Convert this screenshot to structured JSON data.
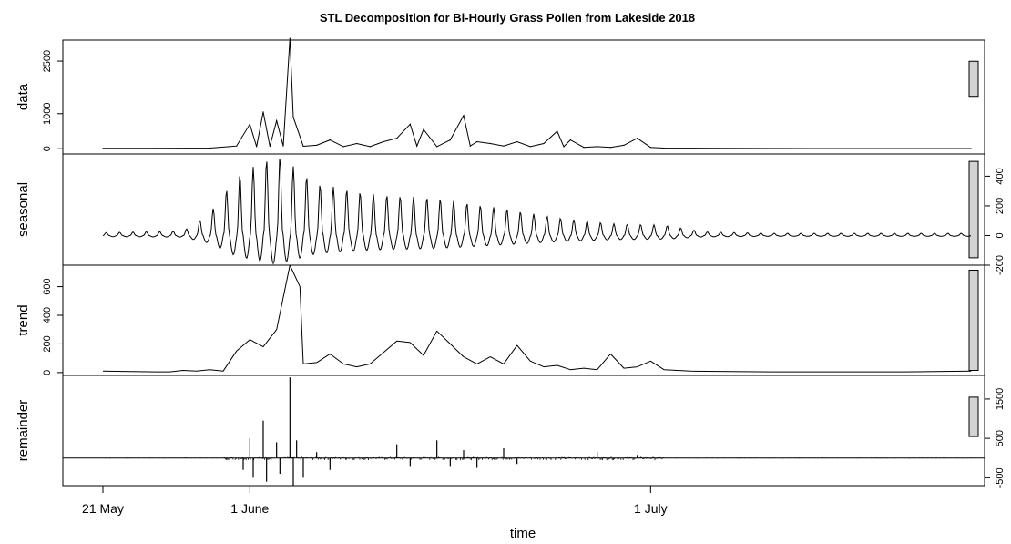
{
  "chart_data": {
    "type": "line",
    "title": "STL Decomposition for Bi-Hourly Grass Pollen from Lakeside 2018",
    "xlabel": "time",
    "x_range": [
      "2018-05-18",
      "2018-07-26"
    ],
    "x_ticks": [
      {
        "date": "2018-05-21",
        "label": "21 May"
      },
      {
        "date": "2018-06-01",
        "label": "1 June"
      },
      {
        "date": "2018-07-01",
        "label": "1 July"
      }
    ],
    "panels": [
      {
        "name": "data",
        "ylabel": "data",
        "ylim": [
          -150,
          3100
        ],
        "yticks": [
          0,
          1000,
          2500
        ],
        "axis_side": "left",
        "scale_bar_range": 1000,
        "zero_line": false,
        "series": [
          {
            "x": "2018-05-21",
            "y": 10
          },
          {
            "x": "2018-05-25",
            "y": 10
          },
          {
            "x": "2018-05-29",
            "y": 20
          },
          {
            "x": "2018-05-31",
            "y": 80
          },
          {
            "x": "2018-06-01",
            "y": 700
          },
          {
            "x": "2018-06-01T12:00",
            "y": 60
          },
          {
            "x": "2018-06-02",
            "y": 1050
          },
          {
            "x": "2018-06-02T12:00",
            "y": 70
          },
          {
            "x": "2018-06-03",
            "y": 800
          },
          {
            "x": "2018-06-03T12:00",
            "y": 80
          },
          {
            "x": "2018-06-04",
            "y": 3150
          },
          {
            "x": "2018-06-04T06:00",
            "y": 900
          },
          {
            "x": "2018-06-05",
            "y": 70
          },
          {
            "x": "2018-06-06",
            "y": 100
          },
          {
            "x": "2018-06-07",
            "y": 250
          },
          {
            "x": "2018-06-08",
            "y": 60
          },
          {
            "x": "2018-06-09",
            "y": 150
          },
          {
            "x": "2018-06-10",
            "y": 60
          },
          {
            "x": "2018-06-11",
            "y": 200
          },
          {
            "x": "2018-06-12",
            "y": 300
          },
          {
            "x": "2018-06-13",
            "y": 700
          },
          {
            "x": "2018-06-13T12:00",
            "y": 80
          },
          {
            "x": "2018-06-14",
            "y": 550
          },
          {
            "x": "2018-06-15",
            "y": 60
          },
          {
            "x": "2018-06-16",
            "y": 250
          },
          {
            "x": "2018-06-17",
            "y": 950
          },
          {
            "x": "2018-06-17T12:00",
            "y": 80
          },
          {
            "x": "2018-06-18",
            "y": 200
          },
          {
            "x": "2018-06-19",
            "y": 150
          },
          {
            "x": "2018-06-20",
            "y": 80
          },
          {
            "x": "2018-06-21",
            "y": 200
          },
          {
            "x": "2018-06-22",
            "y": 60
          },
          {
            "x": "2018-06-23",
            "y": 150
          },
          {
            "x": "2018-06-24",
            "y": 500
          },
          {
            "x": "2018-06-24T12:00",
            "y": 60
          },
          {
            "x": "2018-06-25",
            "y": 250
          },
          {
            "x": "2018-06-26",
            "y": 40
          },
          {
            "x": "2018-06-27",
            "y": 60
          },
          {
            "x": "2018-06-28",
            "y": 40
          },
          {
            "x": "2018-06-29",
            "y": 100
          },
          {
            "x": "2018-06-30",
            "y": 300
          },
          {
            "x": "2018-07-01",
            "y": 40
          },
          {
            "x": "2018-07-02",
            "y": 20
          },
          {
            "x": "2018-07-06",
            "y": 10
          },
          {
            "x": "2018-07-15",
            "y": 5
          },
          {
            "x": "2018-07-25",
            "y": 5
          }
        ]
      },
      {
        "name": "seasonal",
        "ylabel": "seasonal",
        "ylim": [
          -200,
          550
        ],
        "yticks": [
          -200,
          0,
          200,
          400
        ],
        "axis_side": "right",
        "scale_bar_range": 650,
        "zero_line": false,
        "seasonal_amplitude": [
          {
            "x": "2018-05-21",
            "amp": 20
          },
          {
            "x": "2018-05-27",
            "amp": 30
          },
          {
            "x": "2018-05-29",
            "amp": 150
          },
          {
            "x": "2018-05-31",
            "amp": 400
          },
          {
            "x": "2018-06-03",
            "amp": 550
          },
          {
            "x": "2018-06-06",
            "amp": 350
          },
          {
            "x": "2018-06-10",
            "amp": 280
          },
          {
            "x": "2018-06-15",
            "amp": 250
          },
          {
            "x": "2018-06-20",
            "amp": 180
          },
          {
            "x": "2018-06-24",
            "amp": 120
          },
          {
            "x": "2018-06-28",
            "amp": 80
          },
          {
            "x": "2018-07-02",
            "amp": 70
          },
          {
            "x": "2018-07-05",
            "amp": 25
          },
          {
            "x": "2018-07-10",
            "amp": 15
          },
          {
            "x": "2018-07-25",
            "amp": 15
          }
        ]
      },
      {
        "name": "trend",
        "ylabel": "trend",
        "ylim": [
          -20,
          750
        ],
        "yticks": [
          0,
          200,
          400,
          600
        ],
        "axis_side": "left",
        "scale_bar_range": 700,
        "zero_line": false,
        "series": [
          {
            "x": "2018-05-21",
            "y": 10
          },
          {
            "x": "2018-05-25",
            "y": 5
          },
          {
            "x": "2018-05-26",
            "y": 5
          },
          {
            "x": "2018-05-27",
            "y": 15
          },
          {
            "x": "2018-05-28",
            "y": 10
          },
          {
            "x": "2018-05-29",
            "y": 20
          },
          {
            "x": "2018-05-30",
            "y": 10
          },
          {
            "x": "2018-05-31",
            "y": 150
          },
          {
            "x": "2018-06-01",
            "y": 230
          },
          {
            "x": "2018-06-02",
            "y": 180
          },
          {
            "x": "2018-06-03",
            "y": 300
          },
          {
            "x": "2018-06-04",
            "y": 750
          },
          {
            "x": "2018-06-04T18:00",
            "y": 600
          },
          {
            "x": "2018-06-05",
            "y": 60
          },
          {
            "x": "2018-06-06",
            "y": 70
          },
          {
            "x": "2018-06-07",
            "y": 130
          },
          {
            "x": "2018-06-08",
            "y": 60
          },
          {
            "x": "2018-06-09",
            "y": 40
          },
          {
            "x": "2018-06-10",
            "y": 60
          },
          {
            "x": "2018-06-11",
            "y": 140
          },
          {
            "x": "2018-06-12",
            "y": 220
          },
          {
            "x": "2018-06-13",
            "y": 210
          },
          {
            "x": "2018-06-14",
            "y": 120
          },
          {
            "x": "2018-06-15",
            "y": 290
          },
          {
            "x": "2018-06-16",
            "y": 200
          },
          {
            "x": "2018-06-17",
            "y": 110
          },
          {
            "x": "2018-06-18",
            "y": 60
          },
          {
            "x": "2018-06-19",
            "y": 110
          },
          {
            "x": "2018-06-20",
            "y": 60
          },
          {
            "x": "2018-06-21",
            "y": 190
          },
          {
            "x": "2018-06-22",
            "y": 80
          },
          {
            "x": "2018-06-23",
            "y": 40
          },
          {
            "x": "2018-06-24",
            "y": 50
          },
          {
            "x": "2018-06-25",
            "y": 20
          },
          {
            "x": "2018-06-26",
            "y": 30
          },
          {
            "x": "2018-06-27",
            "y": 20
          },
          {
            "x": "2018-06-28",
            "y": 130
          },
          {
            "x": "2018-06-29",
            "y": 30
          },
          {
            "x": "2018-06-30",
            "y": 40
          },
          {
            "x": "2018-07-01",
            "y": 80
          },
          {
            "x": "2018-07-02",
            "y": 20
          },
          {
            "x": "2018-07-04",
            "y": 10
          },
          {
            "x": "2018-07-10",
            "y": 5
          },
          {
            "x": "2018-07-20",
            "y": 5
          },
          {
            "x": "2018-07-25",
            "y": 10
          }
        ]
      },
      {
        "name": "remainder",
        "ylabel": "remainder",
        "ylim": [
          -700,
          2100
        ],
        "yticks": [
          -500,
          500,
          1500
        ],
        "axis_side": "right",
        "scale_bar_range": 1000,
        "zero_line": true,
        "spikes": [
          {
            "x": "2018-05-31T12:00",
            "y": -300
          },
          {
            "x": "2018-06-01",
            "y": 500
          },
          {
            "x": "2018-06-01T06:00",
            "y": -500
          },
          {
            "x": "2018-06-02",
            "y": 950
          },
          {
            "x": "2018-06-02T06:00",
            "y": -600
          },
          {
            "x": "2018-06-03",
            "y": 400
          },
          {
            "x": "2018-06-03T06:00",
            "y": -400
          },
          {
            "x": "2018-06-04",
            "y": 2050
          },
          {
            "x": "2018-06-04T06:00",
            "y": -700
          },
          {
            "x": "2018-06-04T12:00",
            "y": 450
          },
          {
            "x": "2018-06-05",
            "y": -500
          },
          {
            "x": "2018-06-06",
            "y": 150
          },
          {
            "x": "2018-06-07",
            "y": -300
          },
          {
            "x": "2018-06-12",
            "y": 350
          },
          {
            "x": "2018-06-13",
            "y": -200
          },
          {
            "x": "2018-06-15",
            "y": 450
          },
          {
            "x": "2018-06-16",
            "y": -200
          },
          {
            "x": "2018-06-17",
            "y": 200
          },
          {
            "x": "2018-06-18",
            "y": -250
          },
          {
            "x": "2018-06-20",
            "y": 250
          },
          {
            "x": "2018-06-21",
            "y": -150
          },
          {
            "x": "2018-06-27",
            "y": 150
          },
          {
            "x": "2018-06-30",
            "y": 80
          }
        ]
      }
    ]
  }
}
